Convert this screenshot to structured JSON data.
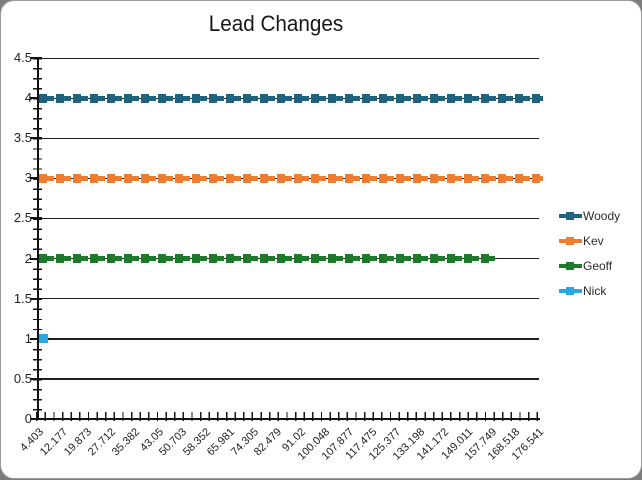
{
  "chart_data": {
    "type": "line",
    "title": "Lead Changes",
    "legend_position": "right",
    "grid": "horizontal gridlines at every 0.5 step",
    "y_axis": {
      "min": 0,
      "max": 4.5,
      "tick_step": 0.5,
      "tick_labels": [
        "4.5",
        "4",
        "3.5",
        "3",
        "2.5",
        "2",
        "1.5",
        "1",
        "0.5",
        "0"
      ]
    },
    "x_label_rotation_deg": 45,
    "categories": [
      "4.403",
      "12.177",
      "19.873",
      "27.712",
      "35.382",
      "43.05",
      "50.703",
      "58.352",
      "65.981",
      "74.305",
      "82.479",
      "91.02",
      "100.048",
      "107.877",
      "117.475",
      "125.377",
      "133.198",
      "141.172",
      "149.011",
      "157.749",
      "168.518",
      "176.541"
    ],
    "series": [
      {
        "name": "Woody",
        "constant_y": 4,
        "color": "#20637F",
        "first_category": "4.403",
        "last_category": "176.541",
        "style": "thick-dashed-with-square-markers"
      },
      {
        "name": "Kev",
        "constant_y": 3,
        "color": "#ED7D31",
        "first_category": "4.403",
        "last_category": "176.541",
        "style": "thick-dashed-with-square-markers"
      },
      {
        "name": "Geoff",
        "constant_y": 2,
        "color": "#1E7A2B",
        "first_category": "4.403",
        "last_category": "157.749",
        "style": "thick-dashed-with-square-markers"
      },
      {
        "name": "Nick",
        "constant_y": 1,
        "color": "#2BA7DF",
        "first_category": "4.403",
        "last_category": "4.403",
        "style": "single-square-marker"
      }
    ]
  }
}
